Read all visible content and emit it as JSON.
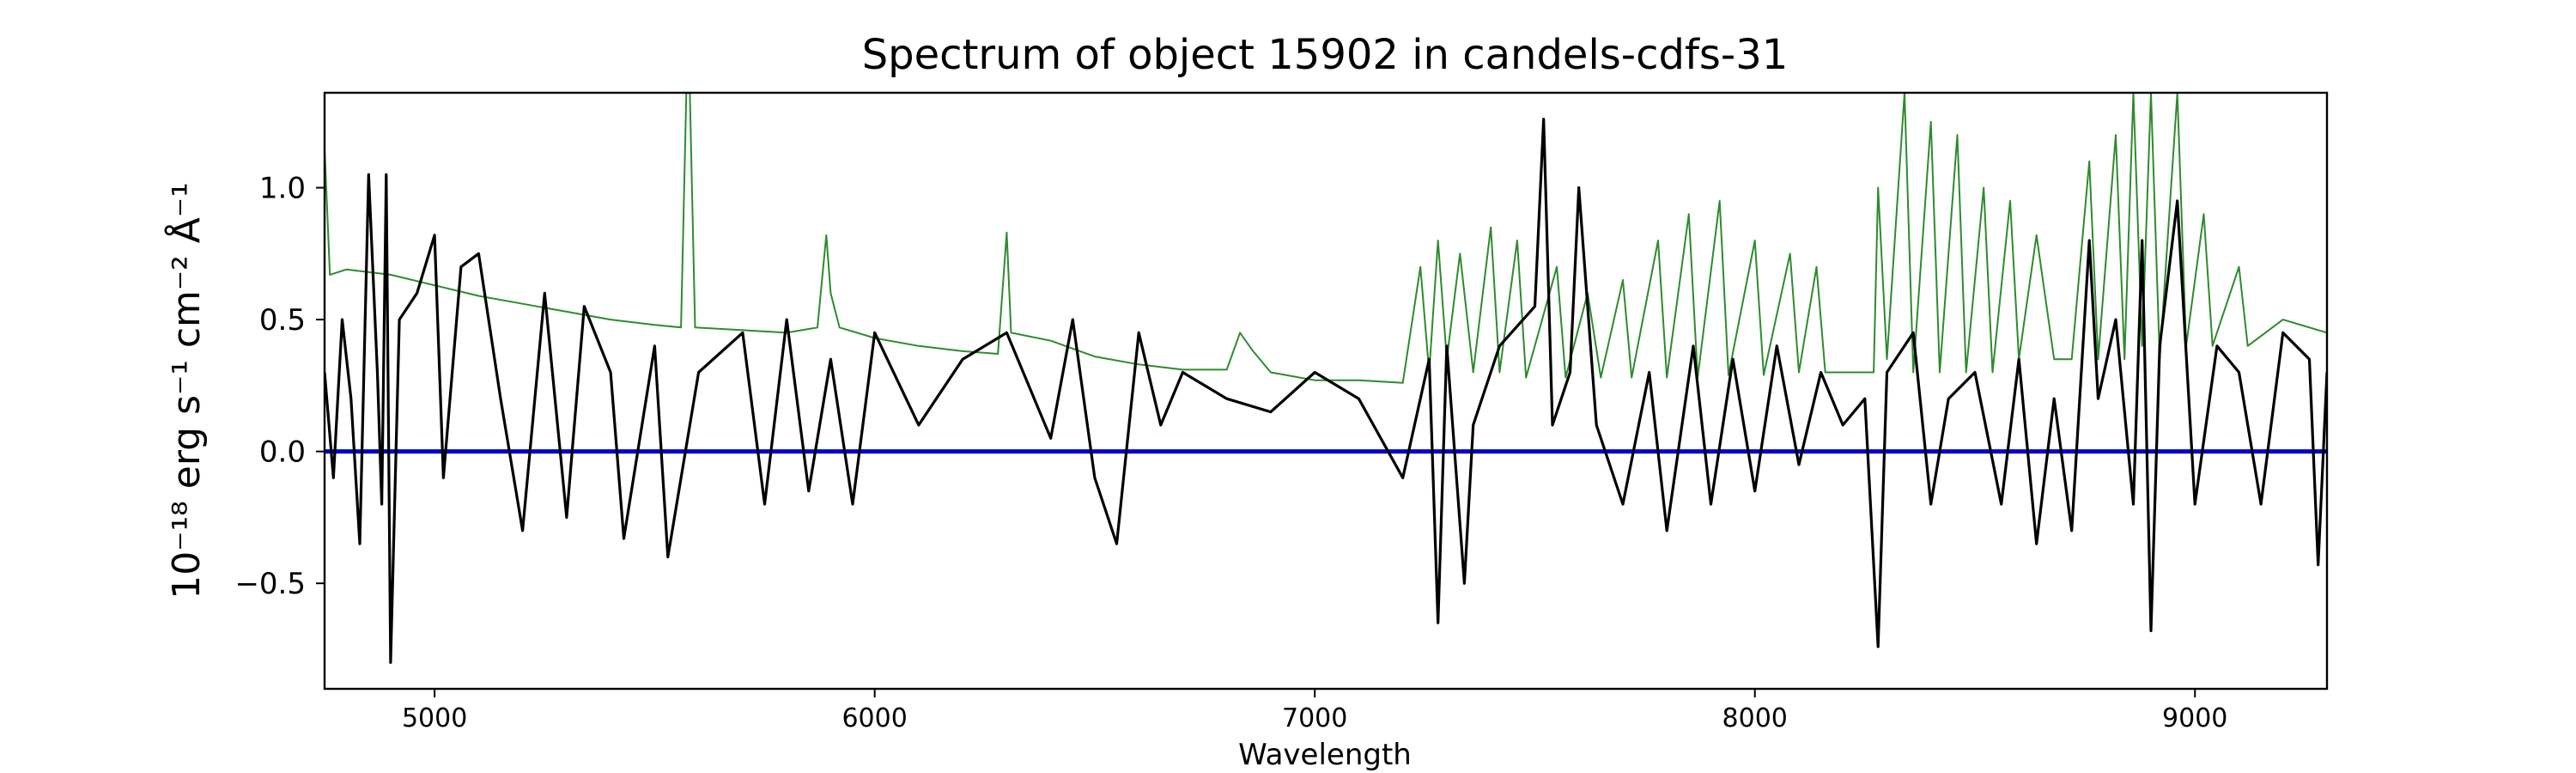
{
  "chart_data": {
    "type": "line",
    "title": "Spectrum of object 15902 in candels-cdfs-31",
    "xlabel": "Wavelength",
    "ylabel": "10⁻¹⁸ erg s⁻¹ cm⁻² Å⁻¹",
    "xlim": [
      4750,
      9300
    ],
    "ylim": [
      -0.9,
      1.36
    ],
    "xticks": [
      5000,
      6000,
      7000,
      8000,
      9000
    ],
    "yticks": [
      -0.5,
      0.0,
      0.5,
      1.0
    ],
    "xtick_labels": [
      "5000",
      "6000",
      "7000",
      "8000",
      "9000"
    ],
    "ytick_labels": [
      "−0.5",
      "0.0",
      "0.5",
      "1.0"
    ],
    "grid": false,
    "series": [
      {
        "color": "#2e8b2e",
        "values_xy": [
          [
            4750,
            1.15
          ],
          [
            4762,
            0.67
          ],
          [
            4800,
            0.69
          ],
          [
            4900,
            0.67
          ],
          [
            5000,
            0.63
          ],
          [
            5100,
            0.59
          ],
          [
            5200,
            0.56
          ],
          [
            5300,
            0.53
          ],
          [
            5400,
            0.5
          ],
          [
            5500,
            0.48
          ],
          [
            5560,
            0.47
          ],
          [
            5572,
            1.36
          ],
          [
            5580,
            1.36
          ],
          [
            5592,
            0.47
          ],
          [
            5700,
            0.46
          ],
          [
            5800,
            0.45
          ],
          [
            5870,
            0.47
          ],
          [
            5890,
            0.82
          ],
          [
            5900,
            0.6
          ],
          [
            5920,
            0.47
          ],
          [
            6000,
            0.43
          ],
          [
            6100,
            0.4
          ],
          [
            6200,
            0.38
          ],
          [
            6280,
            0.37
          ],
          [
            6300,
            0.83
          ],
          [
            6310,
            0.45
          ],
          [
            6400,
            0.42
          ],
          [
            6500,
            0.36
          ],
          [
            6600,
            0.33
          ],
          [
            6700,
            0.31
          ],
          [
            6800,
            0.31
          ],
          [
            6830,
            0.45
          ],
          [
            6860,
            0.38
          ],
          [
            6900,
            0.3
          ],
          [
            7000,
            0.27
          ],
          [
            7100,
            0.27
          ],
          [
            7200,
            0.26
          ],
          [
            7240,
            0.7
          ],
          [
            7260,
            0.3
          ],
          [
            7280,
            0.8
          ],
          [
            7300,
            0.35
          ],
          [
            7330,
            0.75
          ],
          [
            7360,
            0.3
          ],
          [
            7400,
            0.85
          ],
          [
            7420,
            0.3
          ],
          [
            7460,
            0.8
          ],
          [
            7480,
            0.28
          ],
          [
            7550,
            0.7
          ],
          [
            7570,
            0.28
          ],
          [
            7620,
            0.6
          ],
          [
            7650,
            0.28
          ],
          [
            7700,
            0.65
          ],
          [
            7720,
            0.28
          ],
          [
            7780,
            0.8
          ],
          [
            7800,
            0.28
          ],
          [
            7850,
            0.9
          ],
          [
            7870,
            0.28
          ],
          [
            7920,
            0.95
          ],
          [
            7940,
            0.29
          ],
          [
            8000,
            0.8
          ],
          [
            8020,
            0.29
          ],
          [
            8080,
            0.75
          ],
          [
            8100,
            0.3
          ],
          [
            8140,
            0.7
          ],
          [
            8160,
            0.3
          ],
          [
            8200,
            0.3
          ],
          [
            8270,
            0.3
          ],
          [
            8280,
            1.0
          ],
          [
            8300,
            0.35
          ],
          [
            8340,
            1.36
          ],
          [
            8360,
            0.3
          ],
          [
            8400,
            1.25
          ],
          [
            8420,
            0.3
          ],
          [
            8460,
            1.2
          ],
          [
            8480,
            0.3
          ],
          [
            8520,
            1.0
          ],
          [
            8540,
            0.3
          ],
          [
            8580,
            0.95
          ],
          [
            8600,
            0.35
          ],
          [
            8640,
            0.82
          ],
          [
            8680,
            0.35
          ],
          [
            8720,
            0.35
          ],
          [
            8760,
            1.1
          ],
          [
            8780,
            0.35
          ],
          [
            8820,
            1.2
          ],
          [
            8840,
            0.35
          ],
          [
            8860,
            1.36
          ],
          [
            8880,
            0.4
          ],
          [
            8900,
            1.36
          ],
          [
            8920,
            0.35
          ],
          [
            8960,
            1.36
          ],
          [
            8980,
            0.4
          ],
          [
            9020,
            0.9
          ],
          [
            9040,
            0.4
          ],
          [
            9100,
            0.7
          ],
          [
            9120,
            0.4
          ],
          [
            9200,
            0.5
          ],
          [
            9300,
            0.45
          ]
        ]
      },
      {
        "color": "#0000cc",
        "values_xy": [
          [
            4750,
            0.0
          ],
          [
            9300,
            0.0
          ]
        ]
      },
      {
        "color": "#000000",
        "values_xy": [
          [
            4750,
            0.3
          ],
          [
            4770,
            -0.1
          ],
          [
            4790,
            0.5
          ],
          [
            4810,
            0.2
          ],
          [
            4830,
            -0.35
          ],
          [
            4850,
            1.05
          ],
          [
            4870,
            0.3
          ],
          [
            4880,
            -0.2
          ],
          [
            4890,
            1.05
          ],
          [
            4900,
            -0.8
          ],
          [
            4920,
            0.5
          ],
          [
            4960,
            0.6
          ],
          [
            5000,
            0.82
          ],
          [
            5020,
            -0.1
          ],
          [
            5060,
            0.7
          ],
          [
            5100,
            0.75
          ],
          [
            5150,
            0.2
          ],
          [
            5200,
            -0.3
          ],
          [
            5250,
            0.6
          ],
          [
            5300,
            -0.25
          ],
          [
            5340,
            0.55
          ],
          [
            5400,
            0.3
          ],
          [
            5430,
            -0.33
          ],
          [
            5500,
            0.4
          ],
          [
            5530,
            -0.4
          ],
          [
            5600,
            0.3
          ],
          [
            5700,
            0.45
          ],
          [
            5750,
            -0.2
          ],
          [
            5800,
            0.5
          ],
          [
            5850,
            -0.15
          ],
          [
            5900,
            0.35
          ],
          [
            5950,
            -0.2
          ],
          [
            6000,
            0.45
          ],
          [
            6100,
            0.1
          ],
          [
            6200,
            0.35
          ],
          [
            6300,
            0.45
          ],
          [
            6400,
            0.05
          ],
          [
            6450,
            0.5
          ],
          [
            6500,
            -0.1
          ],
          [
            6550,
            -0.35
          ],
          [
            6600,
            0.45
          ],
          [
            6650,
            0.1
          ],
          [
            6700,
            0.3
          ],
          [
            6800,
            0.2
          ],
          [
            6900,
            0.15
          ],
          [
            7000,
            0.3
          ],
          [
            7100,
            0.2
          ],
          [
            7200,
            -0.1
          ],
          [
            7260,
            0.35
          ],
          [
            7280,
            -0.65
          ],
          [
            7300,
            0.4
          ],
          [
            7340,
            -0.5
          ],
          [
            7360,
            0.1
          ],
          [
            7420,
            0.4
          ],
          [
            7500,
            0.55
          ],
          [
            7520,
            1.26
          ],
          [
            7540,
            0.1
          ],
          [
            7580,
            0.3
          ],
          [
            7600,
            1.0
          ],
          [
            7640,
            0.1
          ],
          [
            7700,
            -0.2
          ],
          [
            7760,
            0.3
          ],
          [
            7800,
            -0.3
          ],
          [
            7860,
            0.4
          ],
          [
            7900,
            -0.2
          ],
          [
            7950,
            0.35
          ],
          [
            8000,
            -0.15
          ],
          [
            8050,
            0.4
          ],
          [
            8100,
            -0.05
          ],
          [
            8150,
            0.3
          ],
          [
            8200,
            0.1
          ],
          [
            8250,
            0.2
          ],
          [
            8280,
            -0.74
          ],
          [
            8300,
            0.3
          ],
          [
            8360,
            0.45
          ],
          [
            8400,
            -0.2
          ],
          [
            8440,
            0.2
          ],
          [
            8500,
            0.3
          ],
          [
            8560,
            -0.2
          ],
          [
            8600,
            0.35
          ],
          [
            8640,
            -0.35
          ],
          [
            8680,
            0.2
          ],
          [
            8720,
            -0.3
          ],
          [
            8760,
            0.8
          ],
          [
            8780,
            0.2
          ],
          [
            8820,
            0.5
          ],
          [
            8860,
            -0.2
          ],
          [
            8880,
            0.8
          ],
          [
            8900,
            -0.68
          ],
          [
            8920,
            0.4
          ],
          [
            8960,
            0.95
          ],
          [
            9000,
            -0.2
          ],
          [
            9050,
            0.4
          ],
          [
            9100,
            0.3
          ],
          [
            9150,
            -0.2
          ],
          [
            9200,
            0.45
          ],
          [
            9260,
            0.35
          ],
          [
            9280,
            -0.43
          ],
          [
            9300,
            0.3
          ]
        ]
      }
    ]
  }
}
